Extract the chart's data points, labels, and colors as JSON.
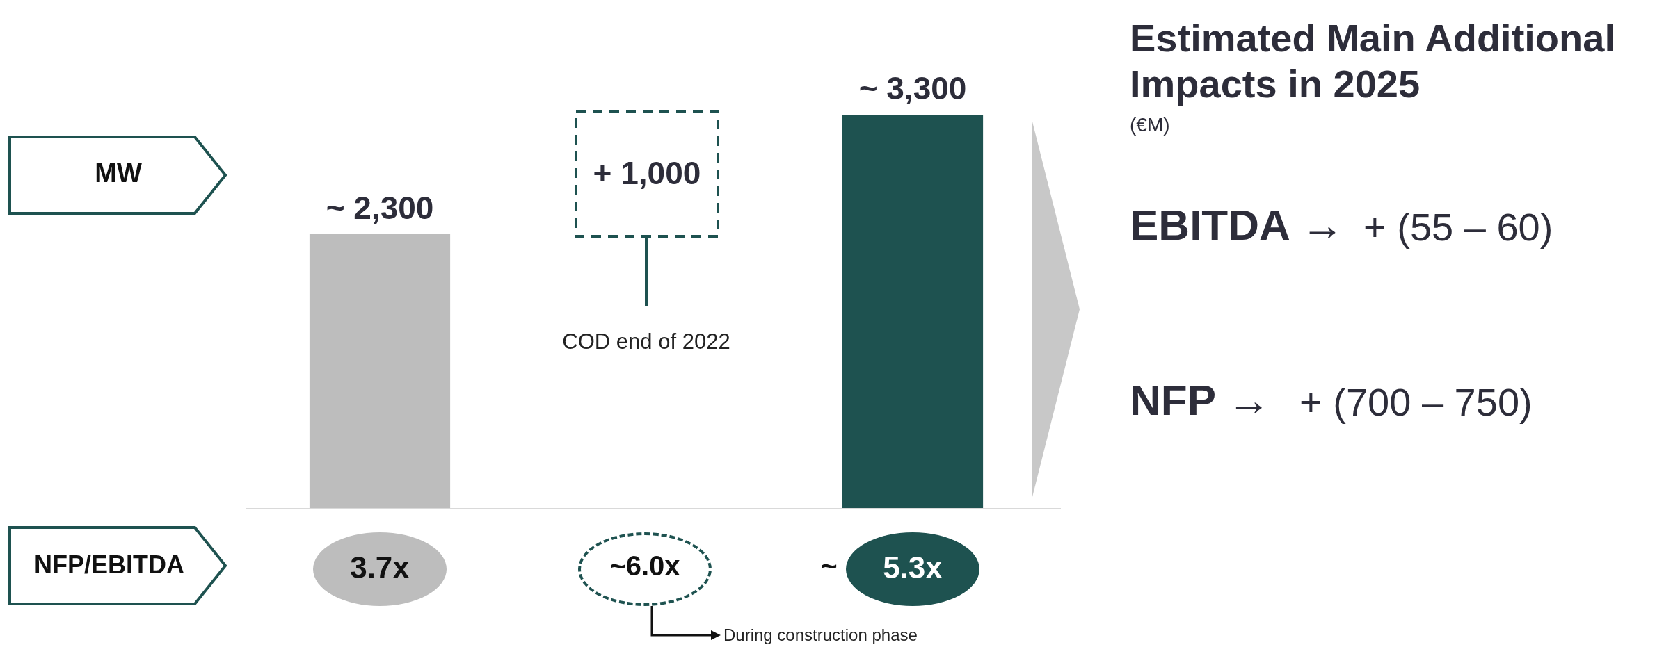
{
  "chart_data": {
    "type": "bar",
    "title": "Estimated Main Additional Impacts in 2025",
    "subtitle": "(€M)",
    "categories": [
      null,
      null
    ],
    "values": [
      2300,
      3300
    ],
    "colors": [
      "#bdbdbd",
      "#1e5250"
    ],
    "value_labels": [
      "~ 2,300",
      "~ 3,300"
    ],
    "annotations": [
      "MW",
      "NFP/EBITDA",
      "3.7x",
      "~6.0x",
      "~",
      "5.3x",
      "COD end of 2022",
      "During construction phase",
      "EBITDA →",
      "+ (55 – 60)",
      "NFP →",
      "+ (700 – 750)",
      "+ 1,000"
    ],
    "legend": false
  }
}
